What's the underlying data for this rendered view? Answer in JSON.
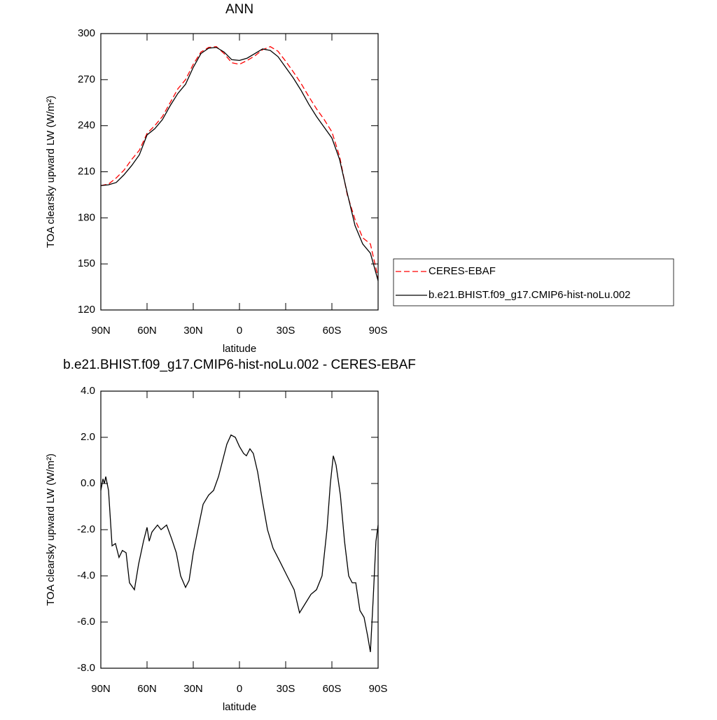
{
  "chart_data": [
    {
      "type": "line",
      "title": "ANN",
      "xlabel": "latitude",
      "ylabel": "TOA clearsky upward LW (W/m²)",
      "x": [
        90,
        85,
        80,
        75,
        70,
        65,
        60,
        55,
        50,
        45,
        40,
        35,
        30,
        25,
        20,
        15,
        10,
        5,
        0,
        -5,
        -10,
        -15,
        -20,
        -25,
        -30,
        -35,
        -40,
        -45,
        -50,
        -55,
        -60,
        -65,
        -70,
        -75,
        -80,
        -85,
        -90
      ],
      "series": [
        {
          "name": "CERES-EBAF",
          "color": "#ff0000",
          "linestyle": "dashed",
          "values": [
            201,
            202,
            206,
            211,
            218,
            224,
            235,
            240,
            246,
            255,
            264,
            270,
            280,
            288,
            291,
            291.5,
            287,
            281,
            280,
            282.5,
            285.5,
            289.5,
            291.5,
            288.5,
            282,
            275,
            267.5,
            259,
            251,
            244,
            236,
            220,
            195,
            179,
            167,
            163,
            141
          ]
        },
        {
          "name": "b.e21.BHIST.f09_g17.CMIP6-hist-noLu.002",
          "color": "#000000",
          "linestyle": "solid",
          "values": [
            201,
            201.5,
            203,
            208,
            214,
            221,
            234,
            238,
            244,
            253,
            261,
            267,
            278,
            287,
            290.5,
            291,
            288,
            283,
            282.5,
            284,
            287,
            290,
            289,
            285,
            278,
            271,
            263,
            254,
            246,
            239,
            232,
            218,
            196,
            175,
            163,
            157,
            139
          ]
        }
      ],
      "xlim": [
        90,
        -90
      ],
      "xticks": [
        {
          "value": 90,
          "label": "90N"
        },
        {
          "value": 60,
          "label": "60N"
        },
        {
          "value": 30,
          "label": "30N"
        },
        0,
        {
          "value": -30,
          "label": "30S"
        },
        {
          "value": -60,
          "label": "60S"
        },
        {
          "value": -90,
          "label": "90S"
        }
      ],
      "ylim": [
        120,
        300
      ],
      "yticks": [
        120,
        150,
        180,
        210,
        240,
        270,
        300
      ],
      "legend": "right"
    },
    {
      "type": "line",
      "title": "b.e21.BHIST.f09_g17.CMIP6-hist-noLu.002 - CERES-EBAF",
      "xlabel": "latitude",
      "ylabel": "TOA clearsky upward LW (W/m²)",
      "x": [
        90,
        88.6,
        87.7,
        86.8,
        85,
        82.7,
        80.5,
        78.2,
        76,
        73.6,
        71.4,
        68.2,
        65.5,
        62.3,
        60,
        58.6,
        56.8,
        53.2,
        50.9,
        47.3,
        44,
        41,
        38.2,
        35,
        32.7,
        30,
        27,
        23.6,
        20,
        16.8,
        13.6,
        10.9,
        8.2,
        5.5,
        2.7,
        0,
        -2.7,
        -4.5,
        -6.8,
        -9,
        -11.8,
        -15,
        -18.2,
        -21.8,
        -26.4,
        -30.9,
        -35.5,
        -39,
        -42.7,
        -46.4,
        -50,
        -53.6,
        -56.8,
        -59,
        -60.9,
        -62.7,
        -65.5,
        -68.2,
        -70.9,
        -73.2,
        -75.5,
        -78.2,
        -80.9,
        -83.2,
        -85,
        -86.8,
        -88.6,
        -90
      ],
      "series": [
        {
          "color": "#000000",
          "linestyle": "solid",
          "values": [
            -0.3,
            0.2,
            0.0,
            0.3,
            -0.3,
            -2.7,
            -2.6,
            -3.2,
            -2.9,
            -3.0,
            -4.3,
            -4.6,
            -3.5,
            -2.5,
            -1.9,
            -2.5,
            -2.1,
            -1.8,
            -2.0,
            -1.8,
            -2.4,
            -3.0,
            -4.0,
            -4.5,
            -4.2,
            -3.0,
            -2.0,
            -0.9,
            -0.5,
            -0.3,
            0.3,
            1.0,
            1.7,
            2.1,
            2.0,
            1.6,
            1.3,
            1.2,
            1.5,
            1.3,
            0.5,
            -0.8,
            -2.0,
            -2.8,
            -3.4,
            -4.0,
            -4.6,
            -5.6,
            -5.2,
            -4.8,
            -4.6,
            -4.0,
            -2.0,
            0.0,
            1.2,
            0.8,
            -0.5,
            -2.5,
            -4.0,
            -4.3,
            -4.3,
            -5.5,
            -5.8,
            -6.6,
            -7.3,
            -5.0,
            -2.5,
            -1.8
          ]
        }
      ],
      "xlim": [
        90,
        -90
      ],
      "xticks": [
        {
          "value": 90,
          "label": "90N"
        },
        {
          "value": 60,
          "label": "60N"
        },
        {
          "value": 30,
          "label": "30N"
        },
        0,
        {
          "value": -30,
          "label": "30S"
        },
        {
          "value": -60,
          "label": "60S"
        },
        {
          "value": -90,
          "label": "90S"
        }
      ],
      "ylim": [
        -8,
        4
      ],
      "yticks": [
        {
          "value": -8,
          "label": "-8.0"
        },
        {
          "value": -6,
          "label": "-6.0"
        },
        {
          "value": -4,
          "label": "-4.0"
        },
        {
          "value": -2,
          "label": "-2.0"
        },
        {
          "value": 0,
          "label": "0.0"
        },
        {
          "value": 2,
          "label": "2.0"
        },
        {
          "value": 4,
          "label": "4.0"
        }
      ]
    }
  ]
}
